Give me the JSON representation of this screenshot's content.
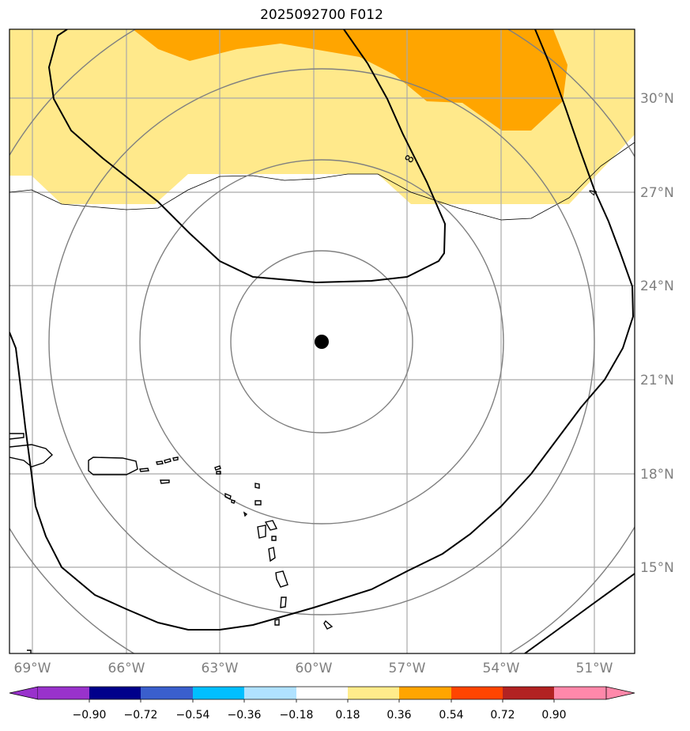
{
  "title": "2025092700 F012",
  "map": {
    "lon_range": [
      -70,
      -49
    ],
    "lat_range": [
      12.5,
      32.5
    ],
    "lat_ticks": [
      "15°N",
      "18°N",
      "21°N",
      "24°N",
      "27°N",
      "30°N"
    ],
    "lon_ticks": [
      "69°W",
      "66°W",
      "63°W",
      "60°W",
      "57°W",
      "54°W",
      "51°W"
    ],
    "center_marker": {
      "lon": -60.25,
      "lat": 22.2
    },
    "contour_label": "8",
    "contour_label_2": "4"
  },
  "colorbar": {
    "colors": [
      "#9932cc",
      "#00008b",
      "#3a5fcd",
      "#00bfff",
      "#b0e2ff",
      "#ffffff",
      "#ffec8b",
      "#ffa500",
      "#ff4500",
      "#b22222",
      "#ff88aa"
    ],
    "tick_labels": [
      "−0.90",
      "−0.72",
      "−0.54",
      "−0.36",
      "−0.18",
      "0.18",
      "0.36",
      "0.54",
      "0.72",
      "0.90"
    ]
  },
  "colors": {
    "fill_yellow": "#ffe98b",
    "fill_orange": "#ffa500",
    "grid": "#a9a9a9",
    "circle": "#808080",
    "contour": "#000000"
  }
}
